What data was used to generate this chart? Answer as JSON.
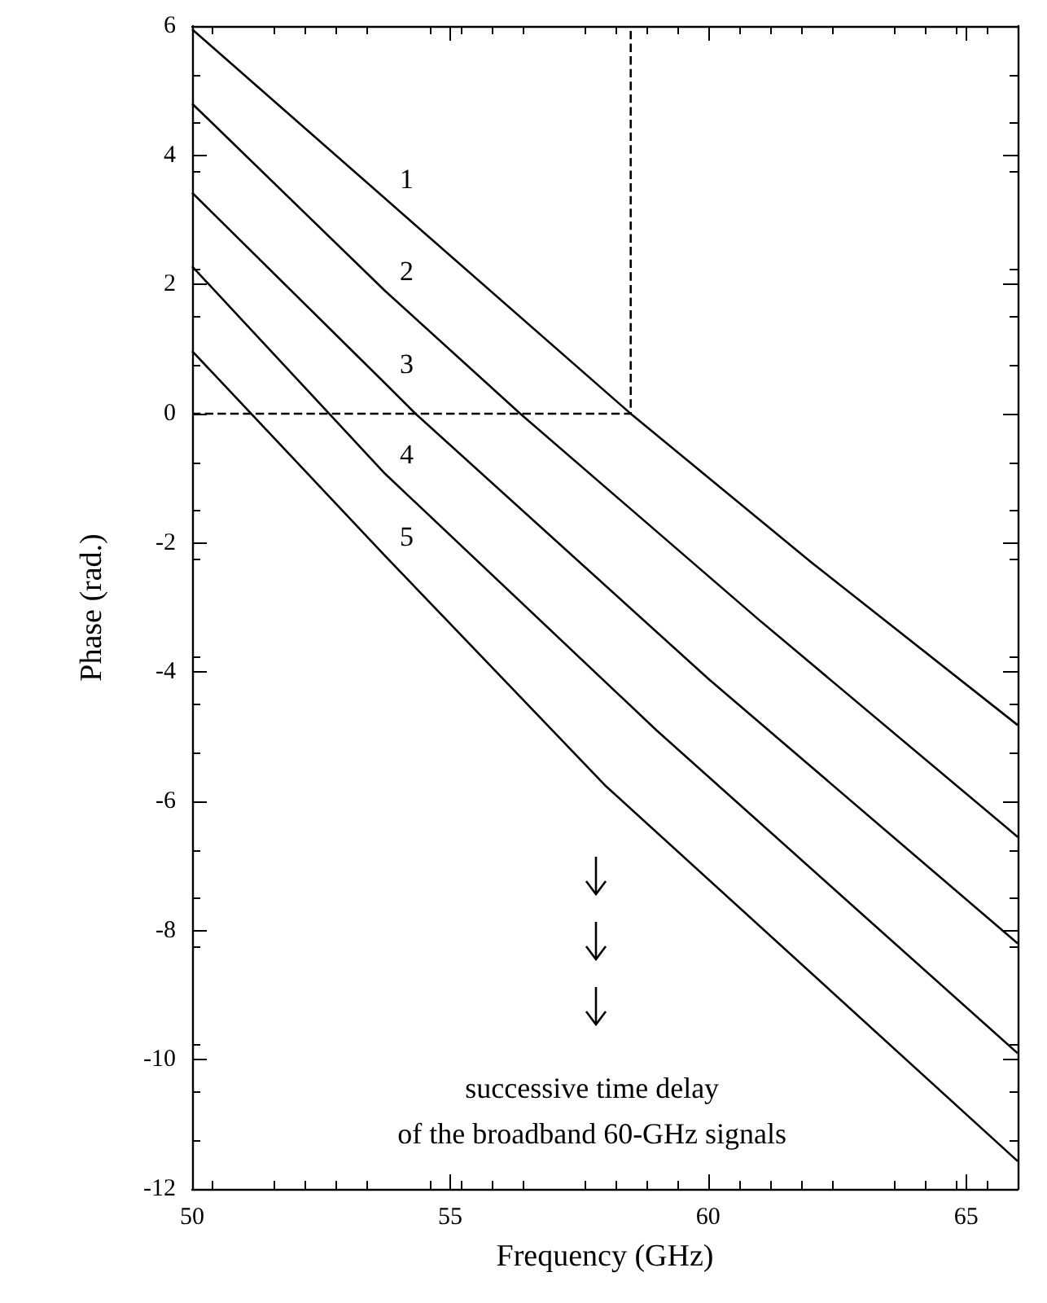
{
  "chart_data": {
    "type": "line",
    "xlabel": "Frequency (GHz)",
    "ylabel": "Phase (rad.)",
    "xlim": [
      50,
      66
    ],
    "xticks": [
      50,
      55,
      60,
      65
    ],
    "ylim": [
      -12,
      6
    ],
    "yticks": [
      -12,
      -10,
      -8,
      -6,
      -4,
      -2,
      0,
      2,
      4,
      6
    ],
    "grid": false,
    "legend": false,
    "marker": "none",
    "line_style": "solid",
    "series": [
      {
        "name": "1",
        "color": "#000000",
        "x": [
          50,
          53.74,
          58.5,
          62,
          66
        ],
        "values": [
          5.95,
          3.33,
          0,
          -2.3,
          -4.82
        ]
      },
      {
        "name": "2",
        "color": "#000000",
        "x": [
          50,
          53.74,
          56.36,
          61,
          66
        ],
        "values": [
          4.8,
          1.9,
          0,
          -3.2,
          -6.55
        ]
      },
      {
        "name": "3",
        "color": "#000000",
        "x": [
          50,
          53.74,
          54.33,
          60,
          66
        ],
        "values": [
          3.42,
          0.47,
          0,
          -4.1,
          -8.2
        ]
      },
      {
        "name": "4",
        "color": "#000000",
        "x": [
          50,
          53.74,
          59,
          66
        ],
        "values": [
          2.28,
          -0.93,
          -4.9,
          -9.9
        ]
      },
      {
        "name": "5",
        "color": "#000000",
        "x": [
          50,
          53.74,
          58,
          66
        ],
        "values": [
          0.97,
          -2.2,
          -5.75,
          -11.57
        ]
      },
      {
        "color": "#000000",
        "line_style": "dashed",
        "x": [
          50,
          58.5,
          58.5
        ],
        "values": [
          0,
          0,
          6
        ]
      }
    ],
    "annotations": [
      "successive time delay",
      "of the broadband 60-GHz signals"
    ]
  }
}
